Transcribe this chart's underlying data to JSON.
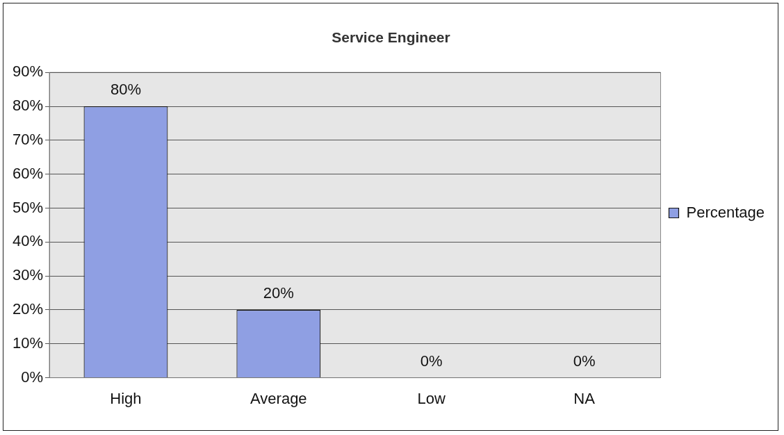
{
  "chart_data": {
    "type": "bar",
    "title": "Service Engineer",
    "categories": [
      "High",
      "Average",
      "Low",
      "NA"
    ],
    "series": [
      {
        "name": "Percentage",
        "color": "#8f9fe3",
        "values": [
          80,
          20,
          0,
          0
        ],
        "value_labels": [
          "80%",
          "20%",
          "0%",
          "0%"
        ]
      }
    ],
    "ylim": [
      0,
      90
    ],
    "yticks": [
      {
        "value": 0,
        "label": "0%"
      },
      {
        "value": 10,
        "label": "10%"
      },
      {
        "value": 20,
        "label": "20%"
      },
      {
        "value": 30,
        "label": "30%"
      },
      {
        "value": 40,
        "label": "40%"
      },
      {
        "value": 50,
        "label": "50%"
      },
      {
        "value": 60,
        "label": "60%"
      },
      {
        "value": 70,
        "label": "70%"
      },
      {
        "value": 80,
        "label": "80%"
      },
      {
        "value": 90,
        "label": "90%"
      }
    ],
    "grid": "y",
    "legend": "right"
  }
}
